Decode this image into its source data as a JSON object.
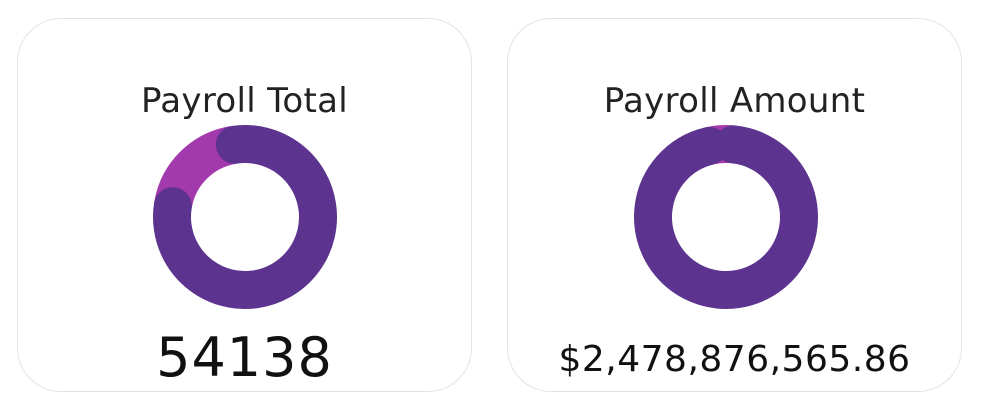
{
  "cards": [
    {
      "title": "Payroll Total",
      "value": "54138"
    },
    {
      "title": "Payroll Amount",
      "value": "$2,478,876,565.86"
    }
  ],
  "chart_data": [
    {
      "type": "pie",
      "variant": "donut",
      "title": "Payroll Total",
      "series": [
        {
          "values": [
            0.2,
            0.8
          ],
          "colors": [
            "#a23aad",
            "#5c338e"
          ]
        }
      ]
    },
    {
      "type": "pie",
      "variant": "donut",
      "title": "Payroll Amount",
      "series": [
        {
          "values": [
            0.05,
            0.95
          ],
          "colors": [
            "#a23aad",
            "#5c338e"
          ]
        }
      ]
    }
  ],
  "colors": {
    "accent_magenta": "#a23aad",
    "primary_purple": "#5c338e"
  }
}
